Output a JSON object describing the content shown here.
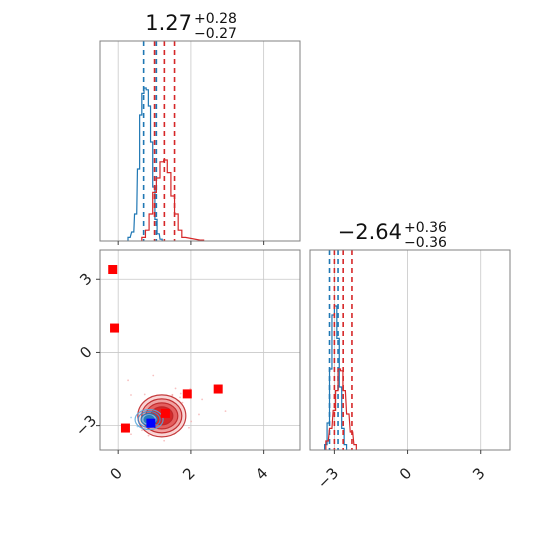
{
  "chart_data": [
    {
      "type": "histogram",
      "panel": "top-left",
      "title_value": "1.27",
      "title_plus": "+0.28",
      "title_minus": "−0.27",
      "xlim": [
        -0.5,
        5.0
      ],
      "x_ticks": [
        0,
        2,
        4
      ],
      "series": [
        {
          "color": "#1f77b4",
          "bins": [
            [
              0.3,
              0.02
            ],
            [
              0.4,
              0.05
            ],
            [
              0.48,
              0.15
            ],
            [
              0.56,
              0.4
            ],
            [
              0.62,
              0.7
            ],
            [
              0.68,
              0.82
            ],
            [
              0.74,
              0.85
            ],
            [
              0.8,
              0.84
            ],
            [
              0.86,
              0.75
            ],
            [
              0.92,
              0.55
            ],
            [
              0.98,
              0.3
            ],
            [
              1.04,
              0.12
            ],
            [
              1.1,
              0.04
            ],
            [
              1.18,
              0.01
            ]
          ],
          "quantiles": [
            0.7,
            1.05
          ]
        },
        {
          "color": "#d62728",
          "bins": [
            [
              0.7,
              0.02
            ],
            [
              0.8,
              0.06
            ],
            [
              0.9,
              0.15
            ],
            [
              1.0,
              0.27
            ],
            [
              1.1,
              0.35
            ],
            [
              1.2,
              0.44
            ],
            [
              1.3,
              0.45
            ],
            [
              1.4,
              0.38
            ],
            [
              1.5,
              0.25
            ],
            [
              1.6,
              0.15
            ],
            [
              1.7,
              0.06
            ],
            [
              1.8,
              0.02
            ],
            [
              2.3,
              0.005
            ]
          ],
          "quantiles": [
            1.0,
            1.27,
            1.55
          ]
        }
      ]
    },
    {
      "type": "scatter",
      "panel": "bottom-left",
      "xlim": [
        -0.5,
        5.0
      ],
      "ylim": [
        -4.0,
        4.2
      ],
      "x_ticks": [
        0,
        2,
        4
      ],
      "y_ticks": [
        -3,
        0,
        3
      ],
      "red_points": [
        [
          -0.15,
          3.4
        ],
        [
          -0.1,
          1.0
        ],
        [
          0.2,
          -3.1
        ],
        [
          1.9,
          -1.7
        ],
        [
          2.75,
          -1.5
        ],
        [
          1.3,
          -2.5
        ]
      ],
      "blue_points": [
        [
          0.9,
          -2.9
        ]
      ],
      "red_contour_center": [
        1.2,
        -2.6
      ],
      "blue_contour_center": [
        0.85,
        -2.75
      ]
    },
    {
      "type": "histogram",
      "panel": "bottom-right",
      "title_value": "−2.64",
      "title_plus": "+0.36",
      "title_minus": "−0.36",
      "xlim": [
        -4.0,
        4.2
      ],
      "x_ticks": [
        -3,
        0,
        3
      ],
      "series": [
        {
          "color": "#1f77b4",
          "bins": [
            [
              -3.35,
              0.03
            ],
            [
              -3.25,
              0.15
            ],
            [
              -3.15,
              0.45
            ],
            [
              -3.05,
              0.75
            ],
            [
              -2.95,
              0.8
            ],
            [
              -2.85,
              0.62
            ],
            [
              -2.75,
              0.35
            ],
            [
              -2.65,
              0.12
            ],
            [
              -2.55,
              0.03
            ]
          ],
          "quantiles": [
            -3.2,
            -2.85
          ]
        },
        {
          "color": "#d62728",
          "bins": [
            [
              -3.3,
              0.05
            ],
            [
              -3.15,
              0.12
            ],
            [
              -3.0,
              0.22
            ],
            [
              -2.9,
              0.33
            ],
            [
              -2.8,
              0.45
            ],
            [
              -2.7,
              0.44
            ],
            [
              -2.6,
              0.33
            ],
            [
              -2.45,
              0.2
            ],
            [
              -2.3,
              0.1
            ],
            [
              -2.15,
              0.03
            ]
          ],
          "quantiles": [
            -3.0,
            -2.64,
            -2.28
          ]
        }
      ]
    }
  ]
}
